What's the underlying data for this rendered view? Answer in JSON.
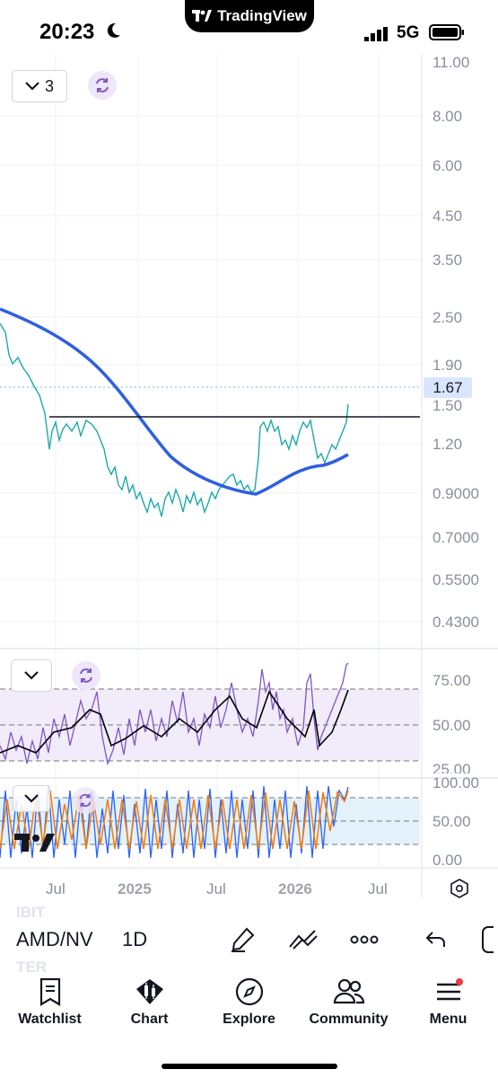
{
  "status_bar": {
    "time": "20:23",
    "network": "5G",
    "app_pill": "TradingView"
  },
  "chart": {
    "layout_selector": "3",
    "price_axis": [
      "11.00",
      "8.00",
      "6.00",
      "4.50",
      "3.50",
      "2.50",
      "1.90",
      "1.50",
      "1.20",
      "0.9000",
      "0.7000",
      "0.5500",
      "0.4300"
    ],
    "current_price": "1.67",
    "time_axis": [
      "Jul",
      "2025",
      "Jul",
      "2026",
      "Jul"
    ],
    "rsi_axis": [
      "75.00",
      "50.00",
      "25.00"
    ],
    "stoch_axis": [
      "100.00",
      "50.00",
      "0.00"
    ],
    "colors": {
      "price": "#1fa8a8",
      "ma": "#2f5fe0",
      "rsi": "#7e57c2",
      "stoch_k": "#2962ff",
      "stoch_d": "#f57c00"
    }
  },
  "ghost_symbols": {
    "above": "IBIT",
    "below": "TER"
  },
  "toolbar": {
    "symbol": "AMD/NV",
    "interval": "1D",
    "tools": [
      "brush-icon",
      "trend-lines-icon",
      "more-icon",
      "undo-icon"
    ]
  },
  "bottom_nav": [
    {
      "label": "Watchlist",
      "icon": "watchlist-icon"
    },
    {
      "label": "Chart",
      "icon": "chart-icon"
    },
    {
      "label": "Explore",
      "icon": "compass-icon"
    },
    {
      "label": "Community",
      "icon": "community-icon"
    },
    {
      "label": "Menu",
      "icon": "menu-icon"
    }
  ]
}
